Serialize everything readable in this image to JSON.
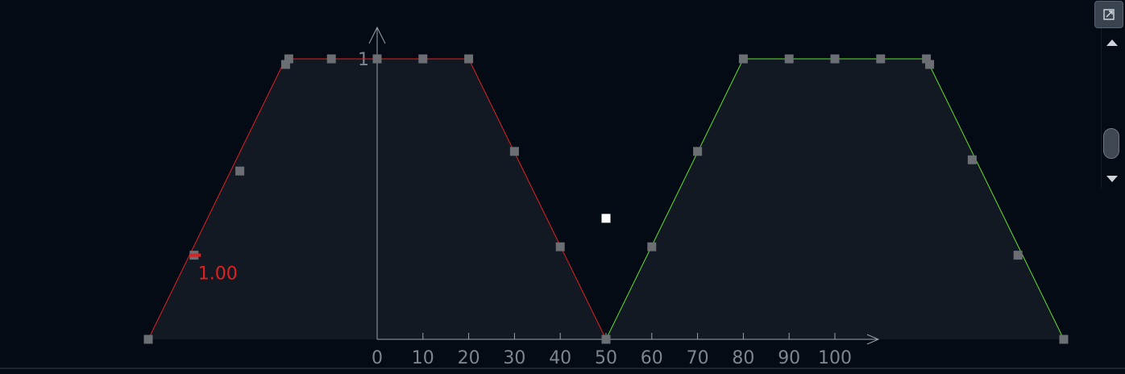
{
  "chart_data": {
    "type": "line",
    "x_ticks": [
      0,
      10,
      20,
      30,
      40,
      50,
      60,
      70,
      80,
      90,
      100
    ],
    "y_ticks": [
      1
    ],
    "xlim": [
      -50,
      150
    ],
    "ylim": [
      0,
      1
    ],
    "grid": false,
    "selected_label": "1.00",
    "series": [
      {
        "color": "#e02020",
        "points": [
          [
            -50,
            0
          ],
          [
            -20,
            1
          ],
          [
            20,
            1
          ],
          [
            50,
            0
          ]
        ],
        "handles": [
          [
            -50,
            0
          ],
          [
            -40,
            0.3
          ],
          [
            -30,
            0.6
          ],
          [
            -20,
            0.98
          ],
          [
            -19.3,
            1
          ],
          [
            -10,
            1
          ],
          [
            0,
            1
          ],
          [
            10,
            1
          ],
          [
            20,
            1
          ],
          [
            30,
            0.67
          ],
          [
            40,
            0.33
          ],
          [
            50,
            0
          ]
        ]
      },
      {
        "color": "#60e030",
        "points": [
          [
            50,
            0
          ],
          [
            80,
            1
          ],
          [
            120,
            1
          ],
          [
            150,
            0
          ]
        ],
        "handles": [
          [
            50,
            0
          ],
          [
            60,
            0.33
          ],
          [
            70,
            0.67
          ],
          [
            80,
            1
          ],
          [
            90,
            1
          ],
          [
            100,
            1
          ],
          [
            110,
            1
          ],
          [
            120,
            1
          ],
          [
            120.7,
            0.98
          ],
          [
            130,
            0.64
          ],
          [
            140,
            0.3
          ],
          [
            150,
            0
          ]
        ]
      }
    ],
    "selected_handle": [
      0,
      1
    ],
    "marker": [
      50,
      0.43
    ]
  },
  "colors": {
    "background": "#050b14",
    "fill": "#121923",
    "axis": "#9aa1ab",
    "tick_text": "#7d858f",
    "handle": "#6b6e73",
    "selected": "#e02020",
    "marker": "#ffffff"
  },
  "icons": {
    "expand": "expand-icon",
    "scroll_up": "triangle-up-icon",
    "scroll_down": "triangle-down-icon"
  }
}
